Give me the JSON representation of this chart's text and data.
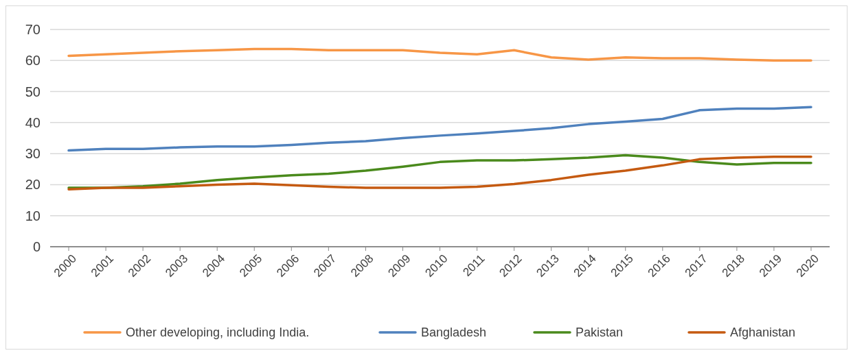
{
  "chart_data": {
    "type": "line",
    "categories": [
      "2000",
      "2001",
      "2002",
      "2003",
      "2004",
      "2005",
      "2006",
      "2007",
      "2008",
      "2009",
      "2010",
      "2011",
      "2012",
      "2013",
      "2014",
      "2015",
      "2016",
      "2017",
      "2018",
      "2019",
      "2020"
    ],
    "series": [
      {
        "name": "Other developing, including India.",
        "color": "#f79646",
        "values": [
          61.5,
          62,
          62.5,
          63,
          63.3,
          63.7,
          63.7,
          63.3,
          63.3,
          63.3,
          62.5,
          62,
          63.3,
          61,
          60.3,
          61,
          60.7,
          60.7,
          60.3,
          60,
          60
        ]
      },
      {
        "name": "Bangladesh",
        "color": "#4f81bd",
        "values": [
          31,
          31.5,
          31.5,
          32,
          32.3,
          32.3,
          32.8,
          33.5,
          34,
          35,
          35.8,
          36.5,
          37.3,
          38.2,
          39.5,
          40.3,
          41.2,
          44,
          44.5,
          44.5,
          45
        ]
      },
      {
        "name": "Pakistan",
        "color": "#4a8a1c",
        "values": [
          19,
          19,
          19.5,
          20.3,
          21.5,
          22.3,
          23,
          23.5,
          24.5,
          25.8,
          27.3,
          27.8,
          27.8,
          28.2,
          28.7,
          29.5,
          28.7,
          27.3,
          26.5,
          27,
          27
        ]
      },
      {
        "name": "Afghanistan",
        "color": "#c55a11",
        "values": [
          18.5,
          19,
          19,
          19.5,
          20,
          20.3,
          19.8,
          19.3,
          19,
          19,
          19,
          19.3,
          20.2,
          21.5,
          23.2,
          24.5,
          26.2,
          28.2,
          28.7,
          29,
          29
        ]
      }
    ],
    "ylim": [
      0,
      70
    ],
    "yticks": [
      0,
      10,
      20,
      30,
      40,
      50,
      60,
      70
    ],
    "grid": "y",
    "legend": "bottom",
    "marker": "none",
    "line_style": "solid"
  }
}
